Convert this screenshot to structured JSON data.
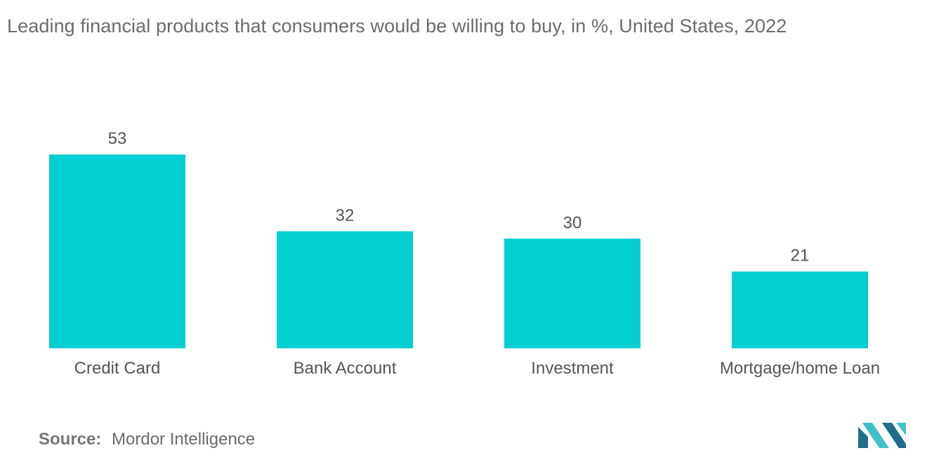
{
  "source": {
    "label": "Source:",
    "value": "Mordor Intelligence"
  },
  "colors": {
    "bar": "#00CED1",
    "logo_dark": "#1f6f8b",
    "logo_light": "#3fc1c9"
  },
  "logo": {
    "icon": "mordor-intelligence-logo"
  },
  "chart_data": {
    "type": "bar",
    "title": "Leading financial products that consumers would be willing to buy, in %, United States, 2022",
    "categories": [
      "Credit Card",
      "Bank Account",
      "Investment",
      "Mortgage/home Loan"
    ],
    "values": [
      53,
      32,
      30,
      21
    ],
    "value_labels": [
      "53",
      "32",
      "30",
      "21"
    ],
    "xlabel": "",
    "ylabel": "",
    "ylim": [
      0,
      53
    ],
    "grid": false,
    "legend": "none",
    "data_labels": "above"
  }
}
